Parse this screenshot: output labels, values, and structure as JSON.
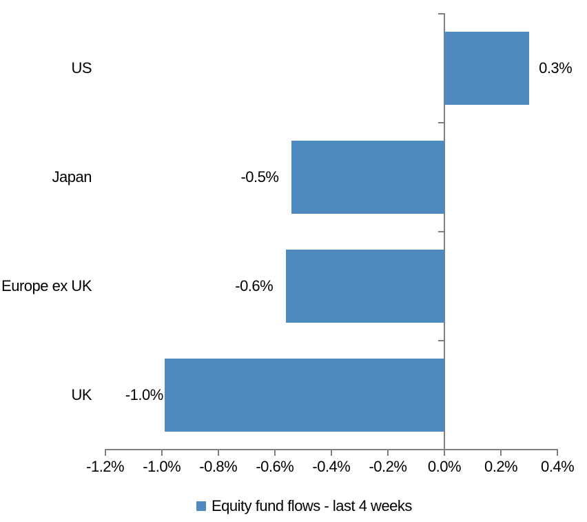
{
  "chart_data": {
    "type": "bar",
    "orientation": "horizontal",
    "title": "",
    "xlabel": "",
    "ylabel": "",
    "categories": [
      "US",
      "Japan",
      "Europe ex UK",
      "UK"
    ],
    "points": [
      {
        "category": "US",
        "value": 0.3,
        "label": "0.3%"
      },
      {
        "category": "Japan",
        "value": -0.54,
        "label": "-0.5%"
      },
      {
        "category": "Europe ex UK",
        "value": -0.56,
        "label": "-0.6%"
      },
      {
        "category": "UK",
        "value": -0.99,
        "label": "-1.0%"
      }
    ],
    "xlim": [
      -1.2,
      0.4
    ],
    "xtick_step": 0.2,
    "xticks": [
      {
        "value": -1.2,
        "label": "-1.2%"
      },
      {
        "value": -1.0,
        "label": "-1.0%"
      },
      {
        "value": -0.8,
        "label": "-0.8%"
      },
      {
        "value": -0.6,
        "label": "-0.6%"
      },
      {
        "value": -0.4,
        "label": "-0.4%"
      },
      {
        "value": -0.2,
        "label": "-0.2%"
      },
      {
        "value": 0.0,
        "label": "0.0%"
      },
      {
        "value": 0.2,
        "label": "0.2%"
      },
      {
        "value": 0.4,
        "label": "0.4%"
      }
    ],
    "unit": "%",
    "grid": false,
    "bar_color": "#4E8ABF",
    "axis_color": "#808080",
    "text_color": "#000000",
    "background_color": "#FFFFFF",
    "legend": {
      "position": "bottom",
      "swatch_color": "#4E8ABF",
      "label": "Equity fund flows - last 4 weeks"
    }
  }
}
